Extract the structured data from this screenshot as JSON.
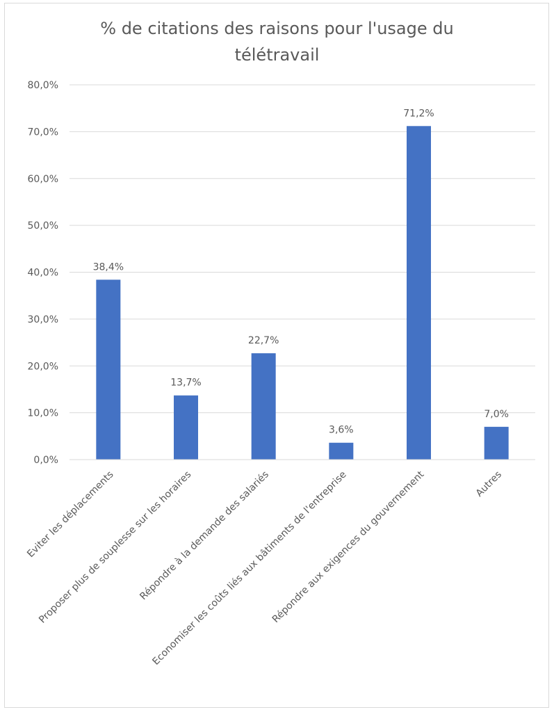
{
  "chart_data": {
    "type": "bar",
    "title": "% de citations des raisons pour l'usage du télétravail",
    "title_lines": [
      "% de citations des raisons pour l'usage du",
      "télétravail"
    ],
    "categories": [
      "Eviter les déplacements",
      "Proposer plus de souplesse sur les horaires",
      "Répondre à la demande des salariés",
      "Economiser les coûts liés aux bâtiments de l'entreprise",
      "Répondre aux exigences du gouvernement",
      "Autres"
    ],
    "values": [
      38.4,
      13.7,
      22.7,
      3.6,
      71.2,
      7.0
    ],
    "value_labels": [
      "38,4%",
      "13,7%",
      "22,7%",
      "3,6%",
      "71,2%",
      "7,0%"
    ],
    "y_ticks": [
      0,
      10,
      20,
      30,
      40,
      50,
      60,
      70,
      80
    ],
    "y_tick_labels": [
      "0,0%",
      "10,0%",
      "20,0%",
      "30,0%",
      "40,0%",
      "50,0%",
      "60,0%",
      "70,0%",
      "80,0%"
    ],
    "ylim": [
      0,
      80
    ],
    "xlabel": "",
    "ylabel": "",
    "grid": true,
    "legend": "none",
    "colors": {
      "bar": "#4472c4",
      "grid": "#d9d9d9",
      "text": "#595959"
    }
  }
}
